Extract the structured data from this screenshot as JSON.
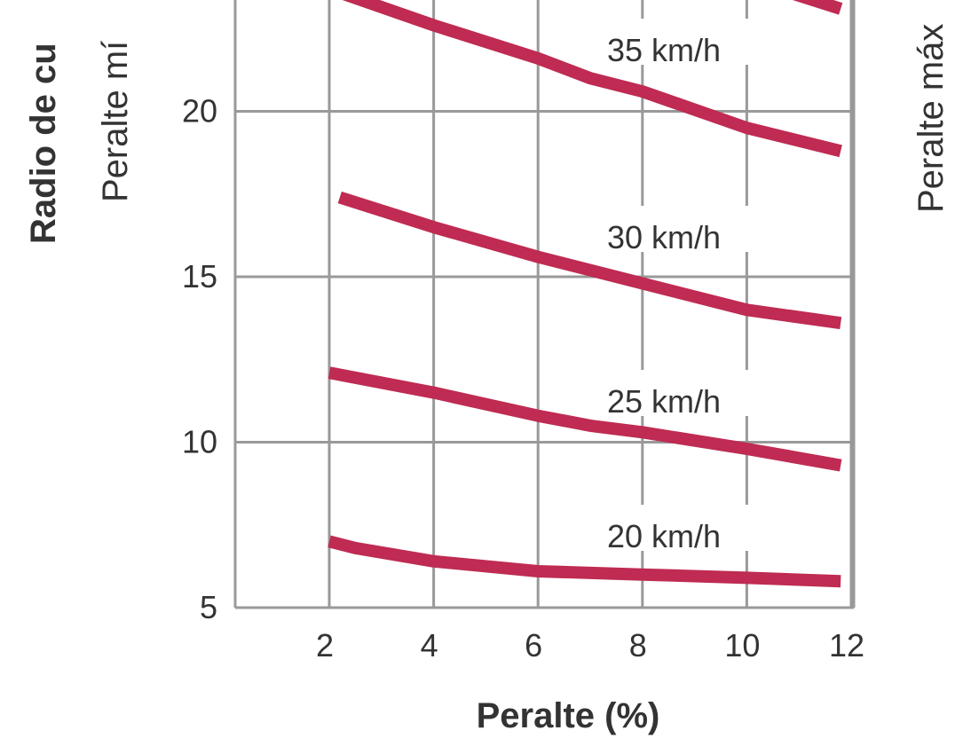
{
  "chart_data": {
    "type": "line",
    "xlabel": "Peralte (%)",
    "ylabel_primary": "Radio de cu",
    "ylabel_secondary": "Peralte mí",
    "ylabel_right": "Peralte máx",
    "x_ticks": [
      "2",
      "4",
      "6",
      "8",
      "10",
      "12"
    ],
    "y_ticks": [
      "5",
      "10",
      "15",
      "20"
    ],
    "xlim": [
      0.25,
      12
    ],
    "ylim": [
      5,
      24.5
    ],
    "grid": true,
    "line_color": "#bf2b52",
    "grid_color": "#999999",
    "series": [
      {
        "name": "20 km/h",
        "x": [
          2,
          2.5,
          4,
          6,
          8,
          10,
          11.8
        ],
        "y": [
          7.0,
          6.8,
          6.4,
          6.1,
          6.0,
          5.9,
          5.8
        ]
      },
      {
        "name": "25 km/h",
        "x": [
          2,
          4,
          6,
          7,
          8,
          10,
          11.8
        ],
        "y": [
          12.1,
          11.5,
          10.8,
          10.5,
          10.3,
          9.8,
          9.3
        ]
      },
      {
        "name": "30 km/h",
        "x": [
          2.2,
          4,
          6,
          8,
          10,
          11.8
        ],
        "y": [
          17.4,
          16.5,
          15.6,
          14.8,
          14.0,
          13.6
        ]
      },
      {
        "name": "35 km/h",
        "x": [
          0.3,
          2,
          4,
          6,
          7,
          8,
          10,
          11.8
        ],
        "y": [
          24.5,
          23.7,
          22.6,
          21.6,
          21.0,
          20.6,
          19.5,
          18.8
        ]
      },
      {
        "name": "",
        "x": [
          10,
          11.8
        ],
        "y": [
          24.0,
          23.1
        ]
      }
    ]
  }
}
